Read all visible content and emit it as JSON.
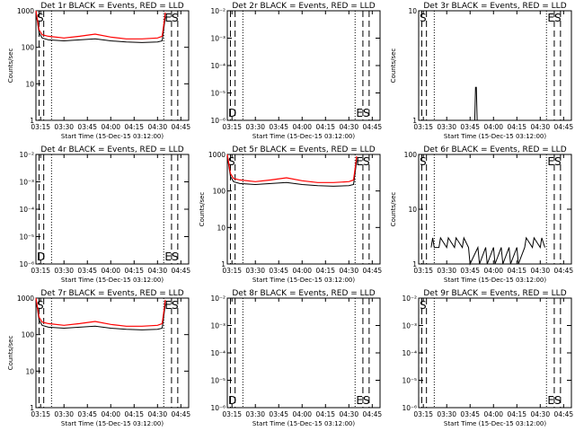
{
  "chart_data": [
    {
      "type": "line",
      "title": "Det 1r BLACK = Events, RED = LLD",
      "xlabel": "Start Time (15-Dec-15 03:12:00)",
      "ylabel": "Counts/sec",
      "ylim": [
        1,
        1000
      ],
      "yscale": "log",
      "yticks": [
        "1",
        "10",
        "100",
        "1000"
      ],
      "xticks": [
        "03:15",
        "03:30",
        "03:45",
        "04:00",
        "04:15",
        "04:30",
        "04:45"
      ],
      "xlim": [
        "03:12",
        "04:50"
      ],
      "markers": [
        "S",
        "ES"
      ],
      "series": [
        {
          "color": "#000000",
          "x": [
            "03:12",
            "03:14",
            "03:16",
            "03:20",
            "03:30",
            "03:40",
            "03:50",
            "04:00",
            "04:10",
            "04:20",
            "04:30",
            "04:33",
            "04:34",
            "04:35"
          ],
          "y": [
            900,
            250,
            180,
            160,
            150,
            160,
            170,
            150,
            140,
            135,
            140,
            150,
            300,
            700
          ]
        },
        {
          "color": "#ff0000",
          "x": [
            "03:12",
            "03:14",
            "03:16",
            "03:20",
            "03:30",
            "03:40",
            "03:50",
            "04:00",
            "04:10",
            "04:20",
            "04:30",
            "04:33",
            "04:34",
            "04:35"
          ],
          "y": [
            1000,
            300,
            220,
            200,
            180,
            200,
            230,
            190,
            170,
            170,
            180,
            200,
            400,
            900
          ]
        }
      ]
    },
    {
      "type": "line",
      "title": "Det 2r BLACK = Events, RED = LLD",
      "xlabel": "Start Time (15-Dec-15 03:12:00)",
      "ylabel": "",
      "ylim": [
        1e-06,
        0.01
      ],
      "yscale": "log",
      "yticks": [
        "10⁻⁶",
        "10⁻⁵",
        "10⁻⁴",
        "10⁻³",
        "10⁻²"
      ],
      "xticks": [
        "03:15",
        "03:30",
        "03:45",
        "04:00",
        "04:15",
        "04:30",
        "04:45"
      ],
      "xlim": [
        "03:12",
        "04:50"
      ],
      "markers": [
        "D",
        "ES"
      ],
      "series": []
    },
    {
      "type": "line",
      "title": "Det 3r BLACK = Events, RED = LLD",
      "xlabel": "Start Time (15-Dec-15 03:12:00)",
      "ylabel": "Counts/sec",
      "ylim": [
        1,
        10
      ],
      "yscale": "log",
      "yticks": [
        "1",
        "10"
      ],
      "xticks": [
        "03:15",
        "03:30",
        "03:45",
        "04:00",
        "04:15",
        "04:30",
        "04:45"
      ],
      "xlim": [
        "03:12",
        "04:50"
      ],
      "markers": [
        "S",
        "ES"
      ],
      "series": [
        {
          "color": "#000000",
          "x": [
            "03:48",
            "03:48.5",
            "03:49",
            "03:49.5"
          ],
          "y": [
            1,
            2,
            2,
            1
          ]
        }
      ]
    },
    {
      "type": "line",
      "title": "Det 4r BLACK = Events, RED = LLD",
      "xlabel": "Start Time (15-Dec-15 03:12:00)",
      "ylabel": "",
      "ylim": [
        1e-06,
        0.01
      ],
      "yscale": "log",
      "yticks": [
        "10⁻⁶",
        "10⁻⁵",
        "10⁻⁴",
        "10⁻³",
        "10⁻²"
      ],
      "xticks": [
        "03:15",
        "03:30",
        "03:45",
        "04:00",
        "04:15",
        "04:30",
        "04:45"
      ],
      "xlim": [
        "03:12",
        "04:50"
      ],
      "markers": [
        "D",
        "ES"
      ],
      "series": []
    },
    {
      "type": "line",
      "title": "Det 5r BLACK = Events, RED = LLD",
      "xlabel": "Start Time (15-Dec-15 03:12:00)",
      "ylabel": "Counts/sec",
      "ylim": [
        1,
        1000
      ],
      "yscale": "log",
      "yticks": [
        "1",
        "10",
        "100",
        "1000"
      ],
      "xticks": [
        "03:15",
        "03:30",
        "03:45",
        "04:00",
        "04:15",
        "04:30",
        "04:45"
      ],
      "xlim": [
        "03:12",
        "04:50"
      ],
      "markers": [
        "S",
        "ES"
      ],
      "series": [
        {
          "color": "#000000",
          "x": [
            "03:12",
            "03:14",
            "03:16",
            "03:20",
            "03:30",
            "03:40",
            "03:50",
            "04:00",
            "04:10",
            "04:20",
            "04:30",
            "04:33",
            "04:34",
            "04:35"
          ],
          "y": [
            900,
            250,
            180,
            160,
            150,
            160,
            170,
            150,
            140,
            135,
            140,
            150,
            300,
            700
          ]
        },
        {
          "color": "#ff0000",
          "x": [
            "03:12",
            "03:14",
            "03:16",
            "03:20",
            "03:30",
            "03:40",
            "03:50",
            "04:00",
            "04:10",
            "04:20",
            "04:30",
            "04:33",
            "04:34",
            "04:35"
          ],
          "y": [
            1000,
            300,
            220,
            200,
            180,
            200,
            230,
            190,
            170,
            170,
            180,
            200,
            400,
            900
          ]
        }
      ]
    },
    {
      "type": "line",
      "title": "Det 6r BLACK = Events, RED = LLD",
      "xlabel": "Start Time (15-Dec-15 03:12:00)",
      "ylabel": "Counts/sec",
      "ylim": [
        1,
        100
      ],
      "yscale": "log",
      "yticks": [
        "1",
        "10",
        "100"
      ],
      "xticks": [
        "03:15",
        "03:30",
        "03:45",
        "04:00",
        "04:15",
        "04:30",
        "04:45"
      ],
      "xlim": [
        "03:12",
        "04:50"
      ],
      "markers": [
        "S",
        "ES"
      ],
      "series": [
        {
          "color": "#000000",
          "x": [
            "03:20",
            "03:21",
            "03:22",
            "03:25",
            "03:26",
            "03:30",
            "03:31",
            "03:35",
            "03:36",
            "03:40",
            "03:41",
            "03:44",
            "03:45",
            "03:50",
            "03:51",
            "03:55",
            "03:56",
            "04:00",
            "04:01",
            "04:05",
            "04:06",
            "04:10",
            "04:11",
            "04:15",
            "04:16",
            "04:20",
            "04:21",
            "04:25",
            "04:26",
            "04:30",
            "04:31",
            "04:33"
          ],
          "y": [
            2,
            3,
            2,
            2,
            3,
            2,
            3,
            2,
            3,
            2,
            3,
            2,
            1,
            2,
            1,
            2,
            1,
            2,
            1,
            2,
            1,
            2,
            1,
            2,
            1,
            2,
            3,
            2,
            3,
            2,
            3,
            2
          ]
        }
      ]
    },
    {
      "type": "line",
      "title": "Det 7r BLACK = Events, RED = LLD",
      "xlabel": "Start Time (15-Dec-15 03:12:00)",
      "ylabel": "Counts/sec",
      "ylim": [
        1,
        1000
      ],
      "yscale": "log",
      "yticks": [
        "1",
        "10",
        "100",
        "1000"
      ],
      "xticks": [
        "03:15",
        "03:30",
        "03:45",
        "04:00",
        "04:15",
        "04:30",
        "04:45"
      ],
      "xlim": [
        "03:12",
        "04:50"
      ],
      "markers": [
        "S",
        "ES"
      ],
      "series": [
        {
          "color": "#000000",
          "x": [
            "03:12",
            "03:14",
            "03:16",
            "03:20",
            "03:30",
            "03:40",
            "03:50",
            "04:00",
            "04:10",
            "04:20",
            "04:30",
            "04:33",
            "04:34",
            "04:35"
          ],
          "y": [
            900,
            250,
            180,
            160,
            150,
            160,
            170,
            150,
            140,
            135,
            140,
            150,
            300,
            700
          ]
        },
        {
          "color": "#ff0000",
          "x": [
            "03:12",
            "03:14",
            "03:16",
            "03:20",
            "03:30",
            "03:40",
            "03:50",
            "04:00",
            "04:10",
            "04:20",
            "04:30",
            "04:33",
            "04:34",
            "04:35"
          ],
          "y": [
            1000,
            300,
            220,
            200,
            180,
            200,
            230,
            190,
            170,
            170,
            180,
            200,
            400,
            900
          ]
        }
      ]
    },
    {
      "type": "line",
      "title": "Det 8r BLACK = Events, RED = LLD",
      "xlabel": "Start Time (15-Dec-15 03:12:00)",
      "ylabel": "",
      "ylim": [
        1e-06,
        0.01
      ],
      "yscale": "log",
      "yticks": [
        "10⁻⁶",
        "10⁻⁵",
        "10⁻⁴",
        "10⁻³",
        "10⁻²"
      ],
      "xticks": [
        "03:15",
        "03:30",
        "03:45",
        "04:00",
        "04:15",
        "04:30",
        "04:45"
      ],
      "xlim": [
        "03:12",
        "04:50"
      ],
      "markers": [
        "D",
        "ES"
      ],
      "series": []
    },
    {
      "type": "line",
      "title": "Det 9r BLACK = Events, RED = LLD",
      "xlabel": "Start Time (15-Dec-15 03:12:00)",
      "ylabel": "",
      "ylim": [
        1e-06,
        0.01
      ],
      "yscale": "log",
      "yticks": [
        "10⁻⁶",
        "10⁻⁵",
        "10⁻⁴",
        "10⁻³",
        "10⁻²"
      ],
      "xticks": [
        "03:15",
        "03:30",
        "03:45",
        "04:00",
        "04:15",
        "04:30",
        "04:45"
      ],
      "xlim": [
        "03:12",
        "04:50"
      ],
      "markers": [
        "S",
        "ES"
      ],
      "series": []
    }
  ]
}
